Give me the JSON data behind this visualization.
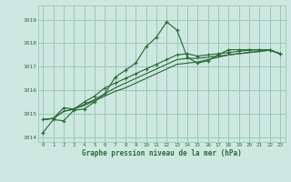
{
  "title": "Graphe pression niveau de la mer (hPa)",
  "bg_color": "#cde8e0",
  "grid_color": "#9dc8b8",
  "line_color": "#2d6b3c",
  "xlim": [
    -0.5,
    23.5
  ],
  "ylim": [
    1013.8,
    1019.6
  ],
  "yticks": [
    1014,
    1015,
    1016,
    1017,
    1018,
    1019
  ],
  "xticks": [
    0,
    1,
    2,
    3,
    4,
    5,
    6,
    7,
    8,
    9,
    10,
    11,
    12,
    13,
    14,
    15,
    16,
    17,
    18,
    19,
    20,
    21,
    22,
    23
  ],
  "series": [
    [
      1014.2,
      1014.75,
      1014.7,
      1015.15,
      1015.2,
      1015.5,
      1015.85,
      1016.55,
      1016.85,
      1017.15,
      1017.85,
      1018.25,
      1018.9,
      1018.55,
      1017.4,
      1017.15,
      1017.25,
      1017.5,
      1017.72,
      1017.72,
      1017.72,
      1017.72,
      1017.72,
      1017.55
    ],
    [
      1014.75,
      1014.8,
      1015.25,
      1015.2,
      1015.5,
      1015.75,
      1016.1,
      1016.3,
      1016.5,
      1016.7,
      1016.9,
      1017.1,
      1017.3,
      1017.5,
      1017.55,
      1017.45,
      1017.5,
      1017.55,
      1017.6,
      1017.65,
      1017.7,
      1017.72,
      1017.72,
      1017.55
    ],
    [
      1014.75,
      1014.8,
      1015.1,
      1015.2,
      1015.4,
      1015.6,
      1015.85,
      1016.1,
      1016.3,
      1016.5,
      1016.7,
      1016.9,
      1017.1,
      1017.3,
      1017.35,
      1017.35,
      1017.4,
      1017.45,
      1017.5,
      1017.55,
      1017.6,
      1017.65,
      1017.7,
      1017.55
    ],
    [
      1014.75,
      1014.8,
      1015.1,
      1015.2,
      1015.35,
      1015.55,
      1015.75,
      1015.95,
      1016.1,
      1016.3,
      1016.5,
      1016.7,
      1016.9,
      1017.1,
      1017.15,
      1017.2,
      1017.3,
      1017.4,
      1017.5,
      1017.55,
      1017.6,
      1017.65,
      1017.7,
      1017.55
    ]
  ]
}
